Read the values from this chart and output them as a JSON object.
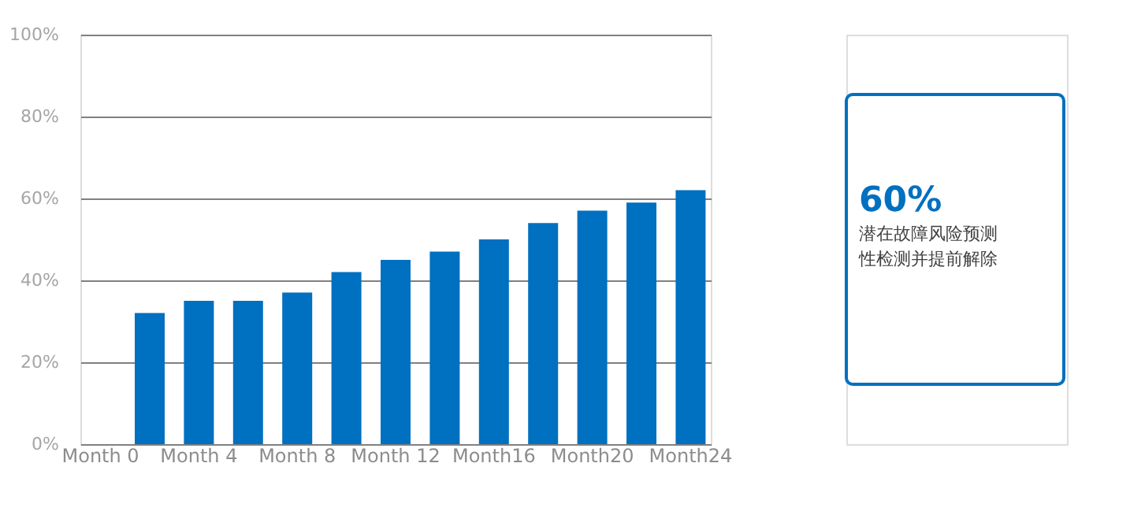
{
  "chart_data": [
    {
      "type": "bar",
      "categories": [
        "Month 0",
        null,
        "Month 4",
        null,
        "Month 8",
        null,
        "Month 12",
        null,
        "Month16",
        null,
        "Month20",
        null,
        "Month24"
      ],
      "values": [
        null,
        32,
        35,
        35,
        37,
        42,
        45,
        47,
        50,
        54,
        57,
        59,
        62
      ],
      "color": "#0070c0",
      "ylim": [
        0,
        100
      ],
      "yticks": [
        {
          "value": 0,
          "label": "0%"
        },
        {
          "value": 20,
          "label": "20%"
        },
        {
          "value": 40,
          "label": "40%"
        },
        {
          "value": 60,
          "label": "60%"
        },
        {
          "value": 80,
          "label": "80%"
        },
        {
          "value": 100,
          "label": "100%"
        }
      ],
      "grid": "y"
    },
    {
      "type": "other",
      "title": "60%",
      "color": "#0070c0",
      "annotations": [
        "潜在故障风险预测",
        "性检测并提前解除"
      ]
    }
  ]
}
